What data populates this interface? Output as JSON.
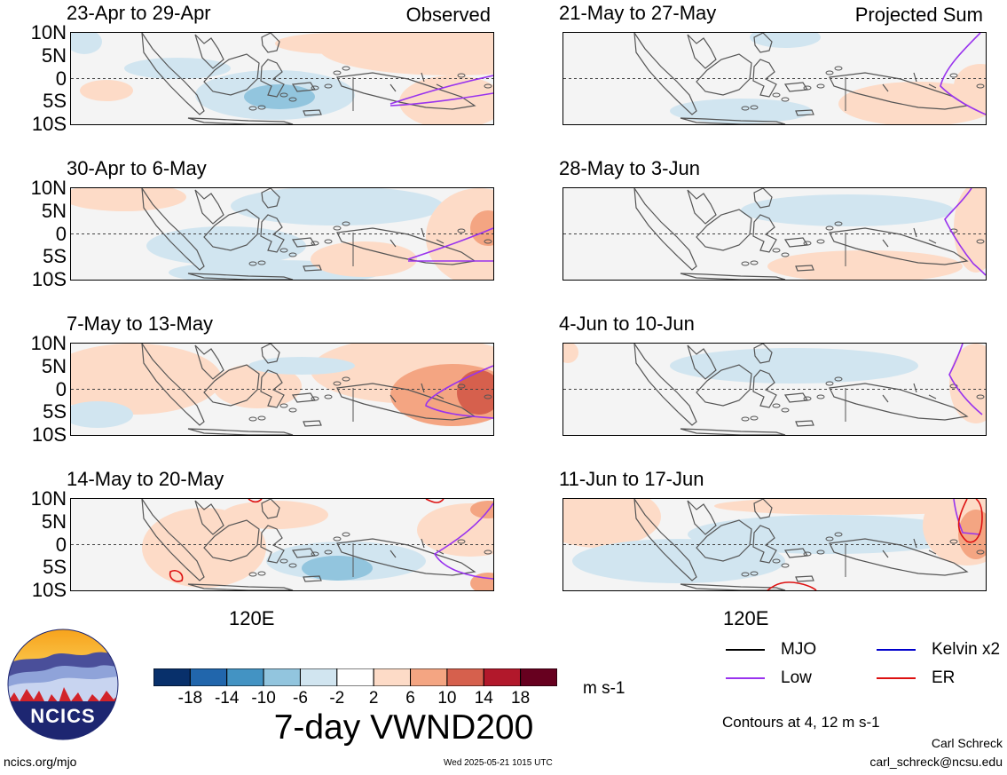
{
  "panels": [
    {
      "title": "23-Apr to 29-Apr",
      "tag": "Observed",
      "col": 0,
      "row": 0,
      "kind": "obs1"
    },
    {
      "title": "30-Apr to 6-May",
      "tag": "",
      "col": 0,
      "row": 1,
      "kind": "obs2"
    },
    {
      "title": "7-May to 13-May",
      "tag": "",
      "col": 0,
      "row": 2,
      "kind": "obs3"
    },
    {
      "title": "14-May to 20-May",
      "tag": "",
      "col": 0,
      "row": 3,
      "kind": "obs4"
    },
    {
      "title": "21-May to 27-May",
      "tag": "Projected Sum",
      "col": 1,
      "row": 0,
      "kind": "prj1"
    },
    {
      "title": "28-May to 3-Jun",
      "tag": "",
      "col": 1,
      "row": 1,
      "kind": "prj2"
    },
    {
      "title": "4-Jun to 10-Jun",
      "tag": "",
      "col": 1,
      "row": 2,
      "kind": "prj3"
    },
    {
      "title": "11-Jun to 17-Jun",
      "tag": "",
      "col": 1,
      "row": 3,
      "kind": "prj4"
    }
  ],
  "lat_labels": [
    "10N",
    "5N",
    "0",
    "5S",
    "10S"
  ],
  "x_tick_label": "120E",
  "colorbar": {
    "colors": [
      "#08306b",
      "#2166ac",
      "#4393c3",
      "#92c5de",
      "#d1e5f0",
      "#ffffff",
      "#fddbc7",
      "#f4a582",
      "#d6604d",
      "#b2182b",
      "#67001f"
    ],
    "labels": [
      "-18",
      "-14",
      "-10",
      "-6",
      "-2",
      "2",
      "6",
      "10",
      "14",
      "18"
    ],
    "units": "m s-1"
  },
  "title": "7-day VWND200",
  "legend": [
    {
      "name": "MJO",
      "color": "#000000"
    },
    {
      "name": "Kelvin x2",
      "color": "#0000cc"
    },
    {
      "name": "Low",
      "color": "#9933ee"
    },
    {
      "name": "ER",
      "color": "#dd1111"
    }
  ],
  "contours_note": "Contours at 4, 12 m s-1",
  "footer": {
    "url": "ncics.org/mjo",
    "timestamp": "Wed 2025-05-21 1015 UTC",
    "author": "Carl Schreck",
    "email": "carl_schreck@ncsu.edu"
  },
  "logo": {
    "text": "NCICS"
  }
}
